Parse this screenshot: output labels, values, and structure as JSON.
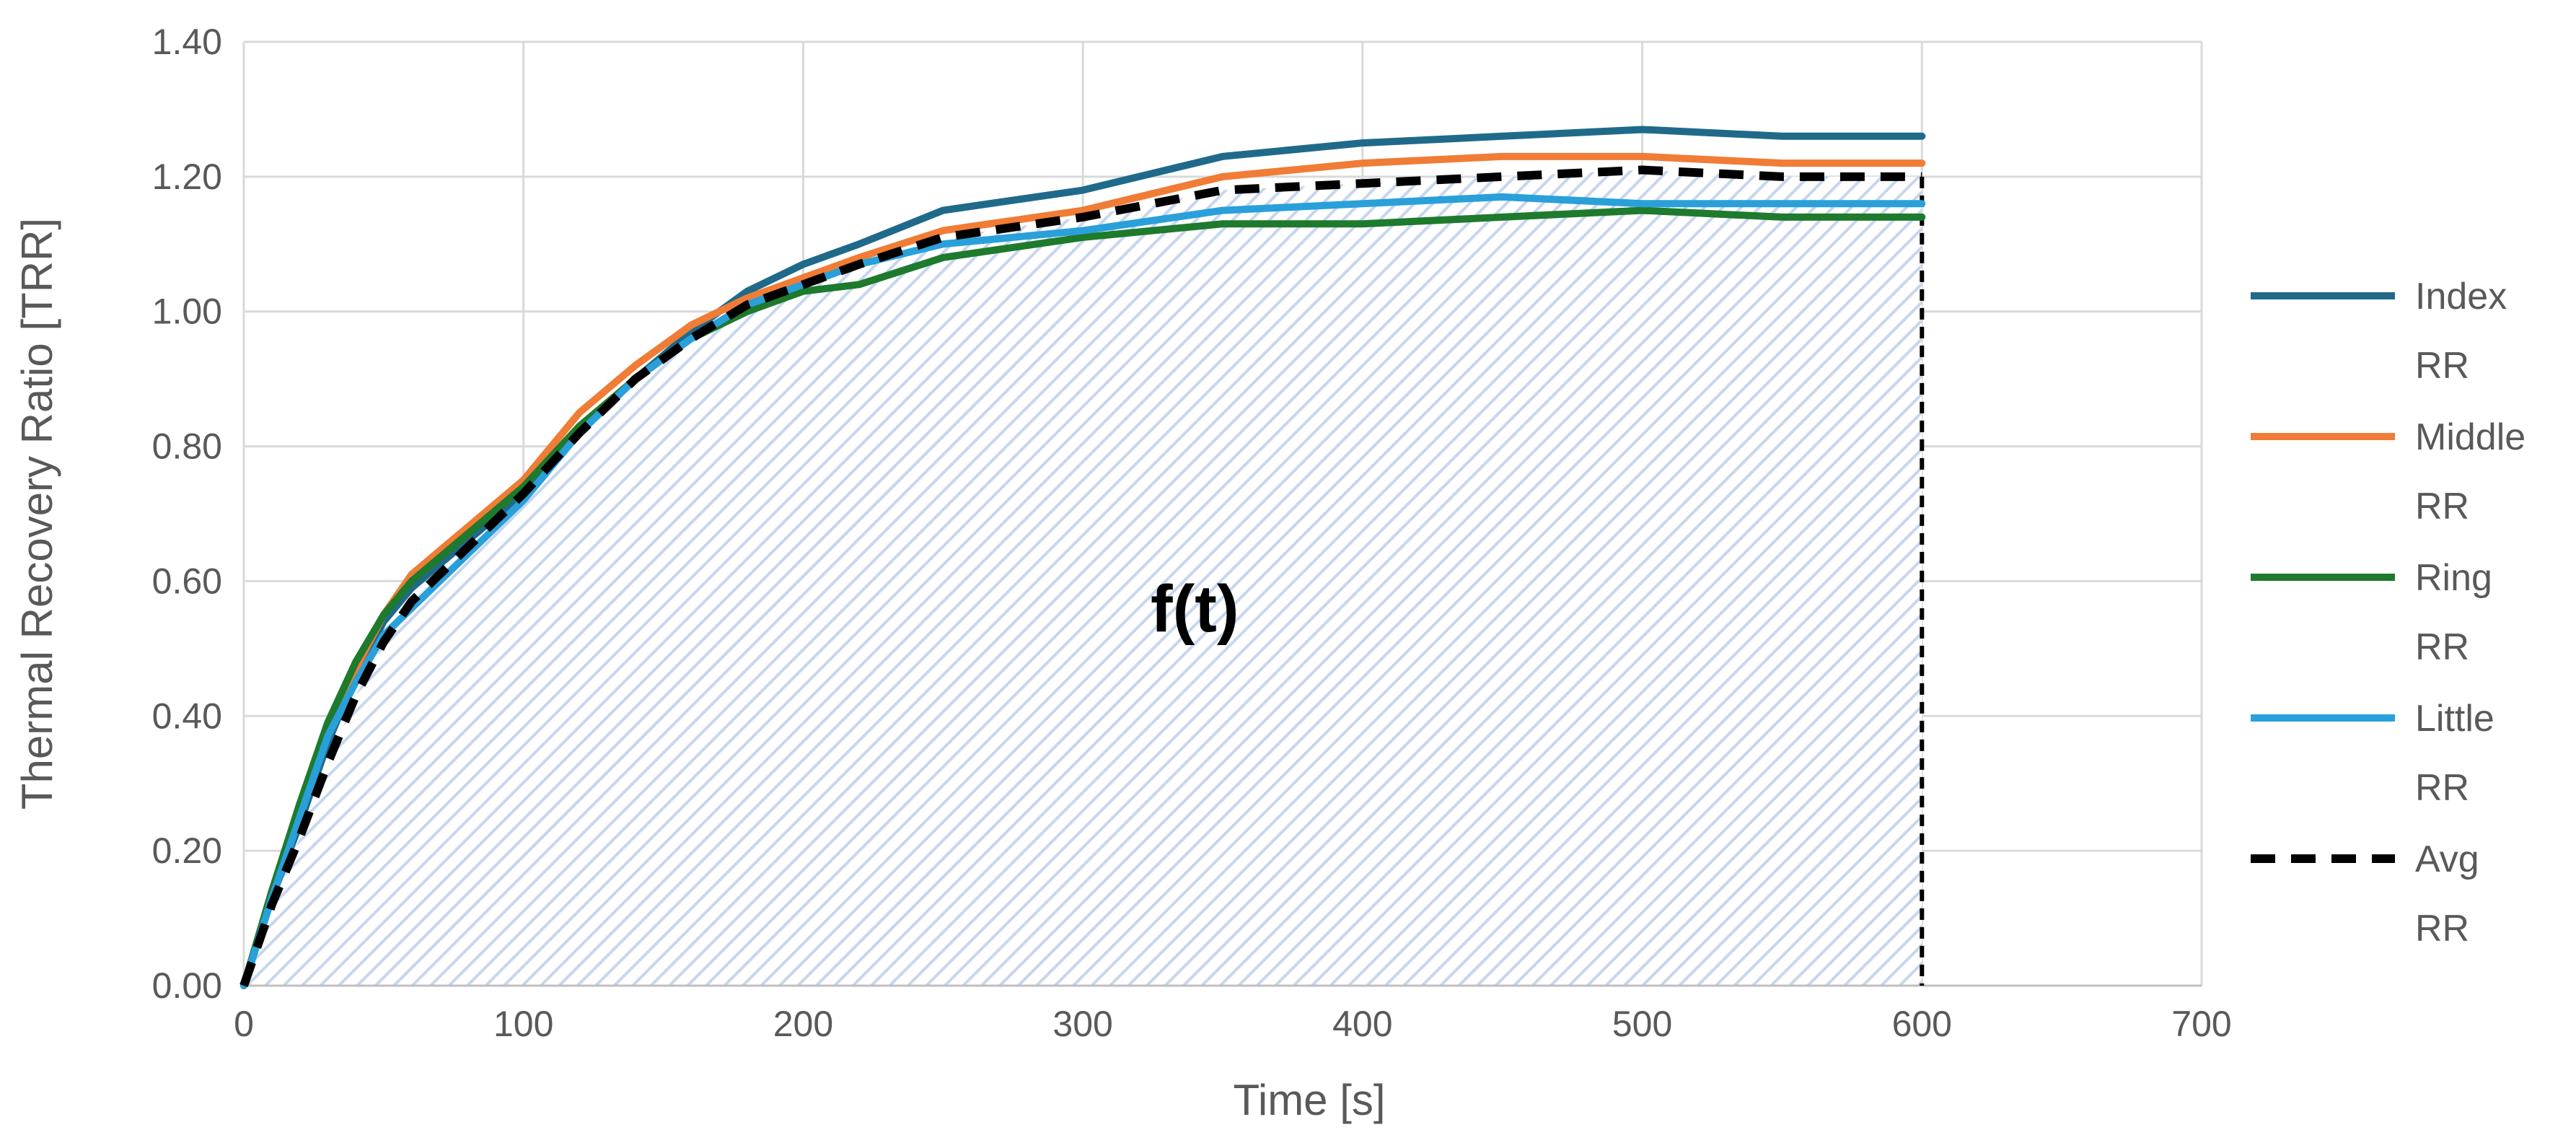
{
  "chart_data": {
    "type": "line",
    "title": "",
    "xlabel": "Time [s]",
    "ylabel": "Thermal Recovery Ratio [TRR]",
    "xlim": [
      0,
      700
    ],
    "ylim": [
      0,
      1.4
    ],
    "x_ticks": [
      "0",
      "100",
      "200",
      "300",
      "400",
      "500",
      "600",
      "700"
    ],
    "y_ticks": [
      "0.00",
      "0.20",
      "0.40",
      "0.60",
      "0.80",
      "1.00",
      "1.20",
      "1.40"
    ],
    "grid": true,
    "legend_position": "right",
    "annotation": {
      "text": "f(t)",
      "x": 340,
      "y": 0.56
    },
    "shaded_region": {
      "x_start": 0,
      "x_end": 600,
      "under_series": "Avg RR",
      "pattern": "diagonal-hatch",
      "color": "#c7d6ee"
    },
    "vertical_marker": {
      "x": 600,
      "y_top": 1.2,
      "style": "dashed",
      "color": "#000000"
    },
    "x": [
      0,
      10,
      20,
      30,
      40,
      50,
      60,
      80,
      100,
      120,
      140,
      160,
      180,
      200,
      220,
      250,
      300,
      350,
      400,
      450,
      500,
      550,
      600
    ],
    "series": [
      {
        "name": "Index\nRR",
        "color": "#1f6a8a",
        "dashed": false,
        "values": [
          0.0,
          0.13,
          0.24,
          0.36,
          0.46,
          0.54,
          0.59,
          0.66,
          0.73,
          0.82,
          0.9,
          0.97,
          1.03,
          1.07,
          1.1,
          1.15,
          1.18,
          1.23,
          1.25,
          1.26,
          1.27,
          1.26,
          1.26
        ]
      },
      {
        "name": "Middle\nRR",
        "color": "#f07c36",
        "dashed": false,
        "values": [
          0.0,
          0.14,
          0.26,
          0.38,
          0.47,
          0.55,
          0.61,
          0.68,
          0.75,
          0.85,
          0.92,
          0.98,
          1.02,
          1.05,
          1.08,
          1.12,
          1.15,
          1.2,
          1.22,
          1.23,
          1.23,
          1.22,
          1.22
        ]
      },
      {
        "name": "Ring\nRR",
        "color": "#1e7a2c",
        "dashed": false,
        "values": [
          0.0,
          0.14,
          0.27,
          0.39,
          0.48,
          0.55,
          0.6,
          0.67,
          0.74,
          0.83,
          0.9,
          0.96,
          1.0,
          1.03,
          1.04,
          1.08,
          1.11,
          1.13,
          1.13,
          1.14,
          1.15,
          1.14,
          1.14
        ]
      },
      {
        "name": "Little\nRR",
        "color": "#29a0da",
        "dashed": false,
        "values": [
          0.0,
          0.13,
          0.25,
          0.37,
          0.45,
          0.52,
          0.56,
          0.64,
          0.72,
          0.82,
          0.9,
          0.96,
          1.01,
          1.04,
          1.07,
          1.1,
          1.12,
          1.15,
          1.16,
          1.17,
          1.16,
          1.16,
          1.16
        ]
      },
      {
        "name": "Avg\nRR",
        "color": "#000000",
        "dashed": true,
        "values": [
          0.0,
          0.12,
          0.22,
          0.33,
          0.43,
          0.51,
          0.57,
          0.65,
          0.73,
          0.82,
          0.9,
          0.96,
          1.01,
          1.04,
          1.07,
          1.11,
          1.14,
          1.18,
          1.19,
          1.2,
          1.21,
          1.2,
          1.2
        ]
      }
    ]
  }
}
